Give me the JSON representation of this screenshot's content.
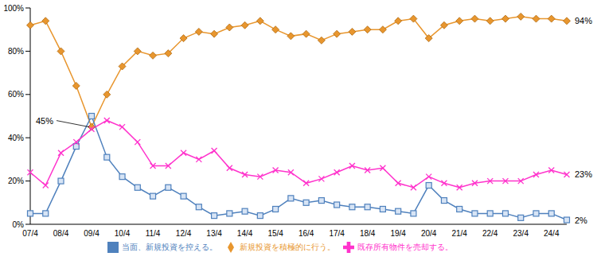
{
  "chart_data": {
    "type": "line",
    "categories": [
      "07/4",
      null,
      "08/4",
      null,
      "09/4",
      null,
      "10/4",
      null,
      "11/4",
      null,
      "12/4",
      null,
      "13/4",
      null,
      "14/4",
      null,
      "15/4",
      null,
      "16/4",
      null,
      "17/4",
      null,
      "18/4",
      null,
      "19/4",
      null,
      "20/4",
      null,
      "21/4",
      null,
      "22/4",
      null,
      "23/4",
      null,
      "24/4",
      null
    ],
    "series": [
      {
        "name": "新規投資を積極的に行う。",
        "color": "#e8962e",
        "marker": "diamond",
        "values": [
          92,
          94,
          80,
          64,
          45,
          60,
          73,
          80,
          78,
          79,
          86,
          89,
          88,
          91,
          92,
          94,
          90,
          87,
          88,
          85,
          88,
          89,
          90,
          90,
          94,
          95,
          86,
          92,
          94,
          95,
          94,
          95,
          96,
          95,
          95,
          94
        ]
      },
      {
        "name": "当面、新規投資を控える。",
        "color": "#4f81bd",
        "marker": "square",
        "values": [
          5,
          5,
          20,
          36,
          50,
          31,
          22,
          17,
          13,
          17,
          13,
          8,
          4,
          5,
          6,
          4,
          7,
          12,
          10,
          11,
          9,
          8,
          8,
          7,
          6,
          5,
          18,
          11,
          7,
          5,
          5,
          5,
          3,
          5,
          5,
          2
        ]
      },
      {
        "name": "既存所有物件を売却する。",
        "color": "#ff33cc",
        "marker": "x",
        "values": [
          24,
          18,
          33,
          38,
          44,
          48,
          45,
          38,
          27,
          27,
          33,
          30,
          34,
          26,
          23,
          22,
          25,
          24,
          19,
          21,
          24,
          27,
          25,
          26,
          19,
          17,
          22,
          19,
          17,
          19,
          20,
          20,
          20,
          23,
          25,
          23
        ]
      }
    ],
    "annotations": [
      {
        "label": "45%",
        "value": 45,
        "index": 4,
        "series": "新規投資を積極的に行う。"
      },
      {
        "label": "94%",
        "value": 94,
        "index": 35,
        "series": "新規投資を積極的に行う。"
      },
      {
        "label": "23%",
        "value": 23,
        "index": 35,
        "series": "既存所有物件を売却する。"
      },
      {
        "label": "2%",
        "value": 2,
        "index": 35,
        "series": "当面、新規投資を控える。"
      }
    ],
    "ylim": [
      0,
      100
    ],
    "yticks": [
      {
        "value": 0,
        "label": "0%"
      },
      {
        "value": 20,
        "label": "20%"
      },
      {
        "value": 40,
        "label": "40%"
      },
      {
        "value": 60,
        "label": "60%"
      },
      {
        "value": 80,
        "label": "80%"
      },
      {
        "value": 100,
        "label": "100%"
      }
    ],
    "grid": false,
    "legend": "bottom"
  }
}
